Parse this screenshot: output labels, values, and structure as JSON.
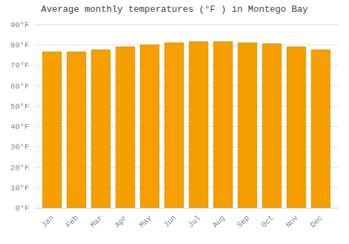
{
  "chart_data": {
    "type": "bar",
    "title": "Average monthly temperatures (°F ) in Montego Bay",
    "categories": [
      "Jan",
      "Feb",
      "Mar",
      "Apr",
      "May",
      "Jun",
      "Jul",
      "Aug",
      "Sep",
      "Oct",
      "Nov",
      "Dec"
    ],
    "values": [
      76.5,
      76.5,
      77.5,
      79.0,
      80.0,
      81.0,
      81.5,
      81.5,
      81.0,
      80.5,
      79.0,
      77.5
    ],
    "color": "#F5A000",
    "ylim": [
      0,
      90
    ],
    "yticks": [
      {
        "value": 0,
        "label": "0°F"
      },
      {
        "value": 10,
        "label": "10°F"
      },
      {
        "value": 20,
        "label": "20°F"
      },
      {
        "value": 30,
        "label": "30°F"
      },
      {
        "value": 40,
        "label": "40°F"
      },
      {
        "value": 50,
        "label": "50°F"
      },
      {
        "value": 60,
        "label": "60°F"
      },
      {
        "value": 70,
        "label": "70°F"
      },
      {
        "value": 80,
        "label": "80°F"
      },
      {
        "value": 90,
        "label": "90°F"
      }
    ],
    "grid": true
  }
}
